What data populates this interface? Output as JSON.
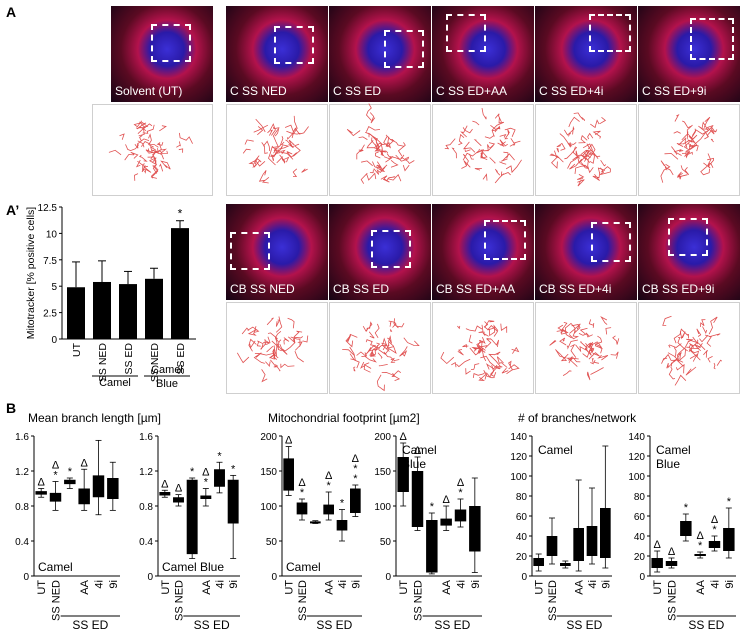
{
  "panel_labels": {
    "a": "A",
    "a_prime": "A’",
    "b": "B"
  },
  "row1_tiles": [
    "Solvent (UT)",
    "C SS NED",
    "C SS ED",
    "C SS ED+AA",
    "C SS ED+4i",
    "C SS ED+9i"
  ],
  "row2_tiles": [
    "CB SS NED",
    "CB SS ED",
    "CB SS ED+AA",
    "CB SS ED+4i",
    "CB SS ED+9i"
  ],
  "colors": {
    "trace": "#e05050",
    "bar": "#000000"
  },
  "chart_data": [
    {
      "type": "bar",
      "ylabel": "Mitotracker [% positive cells]",
      "ylim": [
        0,
        12.5
      ],
      "yticks": [
        "0",
        "2.5",
        "5",
        "7.5",
        "10",
        "12.5"
      ],
      "categories": [
        "UT",
        "SS NED",
        "SS ED",
        "SS NED",
        "SS ED"
      ],
      "values": [
        4.9,
        5.4,
        5.2,
        5.7,
        10.5
      ],
      "errors": [
        2.4,
        2.0,
        1.2,
        1.0,
        0.7
      ],
      "marks": [
        "",
        "",
        "",
        "",
        "*"
      ],
      "groups": [
        {
          "label": "Camel"
        },
        {
          "label": "Camel Blue"
        }
      ]
    },
    {
      "type": "box",
      "title": "Mean branch length [µm]",
      "inner_label": "Camel",
      "ylim": [
        0,
        1.6
      ],
      "yticks": [
        "0",
        "0.4",
        "0.8",
        "1.2",
        "1.6"
      ],
      "categories": [
        "UT",
        "SS NED",
        "AA",
        "4i",
        "9i"
      ],
      "group_label": "SS ED",
      "boxes": [
        {
          "q1": 0.93,
          "q3": 0.97,
          "min": 0.9,
          "max": 1.0,
          "marks": [
            "Δ"
          ]
        },
        {
          "q1": 0.85,
          "q3": 0.95,
          "min": 0.75,
          "max": 1.08,
          "marks": [
            "Δ",
            "*"
          ]
        },
        {
          "q1": 1.05,
          "q3": 1.1,
          "min": 1.0,
          "max": 1.12,
          "marks": [
            "*"
          ]
        },
        {
          "q1": 0.82,
          "q3": 1.0,
          "min": 0.75,
          "max": 1.22,
          "marks": [
            "Δ"
          ]
        },
        {
          "q1": 0.9,
          "q3": 1.15,
          "min": 0.7,
          "max": 1.55,
          "marks": []
        },
        {
          "q1": 0.88,
          "q3": 1.12,
          "min": 0.75,
          "max": 1.3,
          "marks": []
        }
      ]
    },
    {
      "type": "box",
      "inner_label": "Camel Blue",
      "ylim": [
        0,
        1.6
      ],
      "yticks": [
        "0",
        "0.4",
        "0.8",
        "1.2",
        "1.6"
      ],
      "categories": [
        "UT",
        "SS NED",
        "AA",
        "4i",
        "9i"
      ],
      "group_label": "SS ED",
      "boxes": [
        {
          "q1": 0.92,
          "q3": 0.96,
          "min": 0.9,
          "max": 0.98,
          "marks": [
            "Δ"
          ]
        },
        {
          "q1": 0.84,
          "q3": 0.9,
          "min": 0.8,
          "max": 0.93,
          "marks": [
            "Δ"
          ]
        },
        {
          "q1": 0.25,
          "q3": 1.1,
          "min": 0.2,
          "max": 1.12,
          "marks": [
            "*"
          ]
        },
        {
          "q1": 0.88,
          "q3": 0.92,
          "min": 0.8,
          "max": 1.0,
          "marks": [
            "Δ",
            "*"
          ]
        },
        {
          "q1": 1.02,
          "q3": 1.22,
          "min": 0.95,
          "max": 1.3,
          "marks": [
            "*"
          ]
        },
        {
          "q1": 0.6,
          "q3": 1.1,
          "min": 0.2,
          "max": 1.15,
          "marks": [
            "*"
          ]
        }
      ]
    },
    {
      "type": "box",
      "title": "Mitochondrial footprint [µm2]",
      "inner_label": "Camel",
      "ylim": [
        0,
        200
      ],
      "yticks": [
        "0",
        "50",
        "100",
        "150",
        "200"
      ],
      "categories": [
        "UT",
        "SS NED",
        "AA",
        "4i",
        "9i"
      ],
      "group_label": "SS ED",
      "boxes": [
        {
          "q1": 122,
          "q3": 168,
          "min": 115,
          "max": 185,
          "marks": [
            "Δ"
          ]
        },
        {
          "q1": 88,
          "q3": 105,
          "min": 80,
          "max": 110,
          "marks": [
            "Δ",
            "*"
          ]
        },
        {
          "q1": 76,
          "q3": 78,
          "min": 75,
          "max": 79,
          "marks": []
        },
        {
          "q1": 88,
          "q3": 102,
          "min": 80,
          "max": 120,
          "marks": [
            "Δ",
            "*"
          ]
        },
        {
          "q1": 65,
          "q3": 80,
          "min": 50,
          "max": 95,
          "marks": [
            "*"
          ]
        },
        {
          "q1": 90,
          "q3": 125,
          "min": 85,
          "max": 130,
          "marks": [
            "Δ",
            "*",
            "*"
          ]
        }
      ]
    },
    {
      "type": "box",
      "inner_label": "Camel Blue",
      "ylim": [
        0,
        200
      ],
      "yticks": [
        "0",
        "50",
        "100",
        "150",
        "200"
      ],
      "categories": [
        "UT",
        "SS NED",
        "AA",
        "4i",
        "9i"
      ],
      "group_label": "SS ED",
      "boxes": [
        {
          "q1": 120,
          "q3": 170,
          "min": 100,
          "max": 190,
          "marks": [
            "Δ"
          ]
        },
        {
          "q1": 70,
          "q3": 150,
          "min": 65,
          "max": 170,
          "marks": [
            "Δ"
          ]
        },
        {
          "q1": 5,
          "q3": 80,
          "min": 3,
          "max": 90,
          "marks": [
            "*"
          ]
        },
        {
          "q1": 72,
          "q3": 82,
          "min": 65,
          "max": 100,
          "marks": [
            "Δ"
          ]
        },
        {
          "q1": 78,
          "q3": 95,
          "min": 70,
          "max": 110,
          "marks": [
            "Δ",
            "*"
          ]
        },
        {
          "q1": 35,
          "q3": 100,
          "min": 5,
          "max": 140,
          "marks": []
        }
      ]
    },
    {
      "type": "box",
      "title": "# of branches/network",
      "inner_label": "Camel",
      "ylim": [
        0,
        140
      ],
      "yticks": [
        "0",
        "20",
        "40",
        "60",
        "80",
        "100",
        "120",
        "140"
      ],
      "categories": [
        "UT",
        "SS NED",
        "AA",
        "4i",
        "9i"
      ],
      "group_label": "SS ED",
      "boxes": [
        {
          "q1": 10,
          "q3": 18,
          "min": 5,
          "max": 22,
          "marks": []
        },
        {
          "q1": 20,
          "q3": 40,
          "min": 12,
          "max": 58,
          "marks": []
        },
        {
          "q1": 10,
          "q3": 13,
          "min": 8,
          "max": 15,
          "marks": []
        },
        {
          "q1": 15,
          "q3": 48,
          "min": 5,
          "max": 96,
          "marks": []
        },
        {
          "q1": 20,
          "q3": 50,
          "min": 12,
          "max": 88,
          "marks": []
        },
        {
          "q1": 18,
          "q3": 68,
          "min": 8,
          "max": 130,
          "marks": []
        }
      ]
    },
    {
      "type": "box",
      "inner_label": "Camel Blue",
      "ylim": [
        0,
        140
      ],
      "yticks": [
        "0",
        "20",
        "40",
        "60",
        "80",
        "100",
        "120",
        "140"
      ],
      "categories": [
        "UT",
        "SS NED",
        "AA",
        "4i",
        "9i"
      ],
      "group_label": "SS ED",
      "boxes": [
        {
          "q1": 8,
          "q3": 18,
          "min": 4,
          "max": 25,
          "marks": [
            "Δ"
          ]
        },
        {
          "q1": 10,
          "q3": 15,
          "min": 8,
          "max": 18,
          "marks": [
            "Δ"
          ]
        },
        {
          "q1": 40,
          "q3": 55,
          "min": 35,
          "max": 62,
          "marks": [
            "*"
          ]
        },
        {
          "q1": 20,
          "q3": 22,
          "min": 18,
          "max": 24,
          "marks": [
            "Δ",
            "*"
          ]
        },
        {
          "q1": 28,
          "q3": 35,
          "min": 25,
          "max": 40,
          "marks": [
            "Δ",
            "*"
          ]
        },
        {
          "q1": 25,
          "q3": 48,
          "min": 18,
          "max": 68,
          "marks": [
            "*"
          ]
        }
      ]
    }
  ]
}
